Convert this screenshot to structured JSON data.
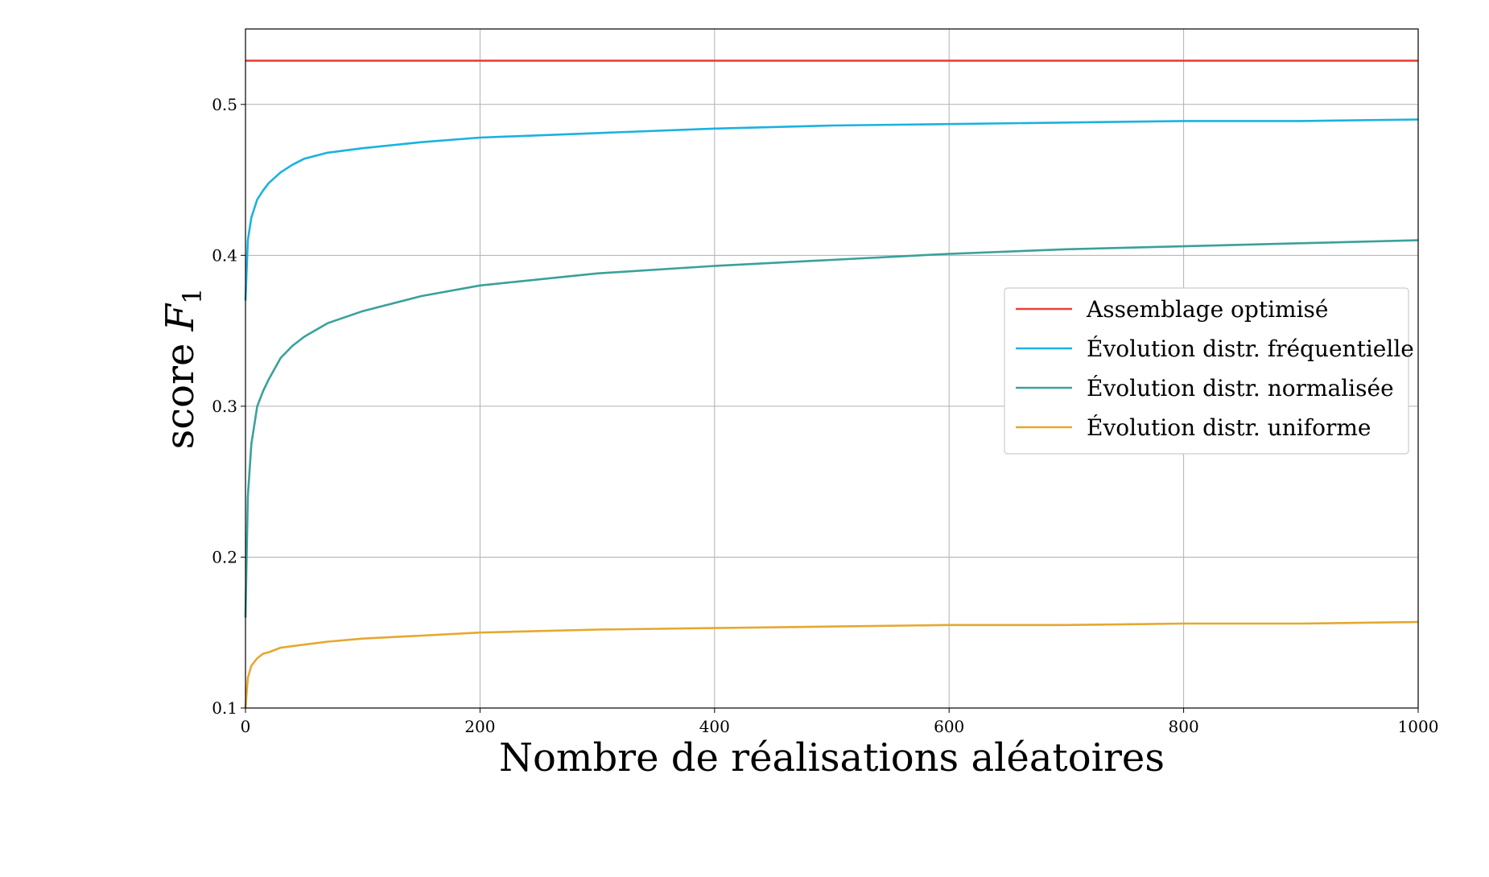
{
  "chart_data": {
    "type": "line",
    "xlabel": "Nombre de réalisations aléatoires",
    "ylabel_prefix": "score ",
    "ylabel_var": "F",
    "ylabel_sub": "1",
    "xlim": [
      0,
      1000
    ],
    "ylim": [
      0.1,
      0.55
    ],
    "xticks": [
      0,
      200,
      400,
      600,
      800,
      1000
    ],
    "xtick_labels": [
      "0",
      "200",
      "400",
      "600",
      "800",
      "1000"
    ],
    "yticks": [
      0.1,
      0.2,
      0.3,
      0.4,
      0.5
    ],
    "ytick_labels": [
      "0.1",
      "0.2",
      "0.3",
      "0.4",
      "0.5"
    ],
    "grid": true,
    "legend_position": "center-right",
    "series": [
      {
        "name": "Assemblage optimisé",
        "color": "#e8413b",
        "x": [
          0,
          1000
        ],
        "y": [
          0.529,
          0.529
        ]
      },
      {
        "name": "Évolution distr. fréquentielle",
        "color": "#1ab2e0",
        "x": [
          0,
          2,
          5,
          10,
          15,
          20,
          30,
          40,
          50,
          70,
          100,
          150,
          200,
          300,
          400,
          500,
          600,
          700,
          800,
          900,
          1000
        ],
        "y": [
          0.37,
          0.41,
          0.425,
          0.437,
          0.443,
          0.448,
          0.455,
          0.46,
          0.464,
          0.468,
          0.471,
          0.475,
          0.478,
          0.481,
          0.484,
          0.486,
          0.487,
          0.488,
          0.489,
          0.489,
          0.49
        ]
      },
      {
        "name": "Évolution distr. normalisée",
        "color": "#3aa19a",
        "x": [
          0,
          2,
          5,
          10,
          15,
          20,
          30,
          40,
          50,
          70,
          100,
          150,
          200,
          300,
          400,
          500,
          600,
          700,
          800,
          900,
          1000
        ],
        "y": [
          0.16,
          0.24,
          0.275,
          0.3,
          0.31,
          0.318,
          0.332,
          0.34,
          0.346,
          0.355,
          0.363,
          0.373,
          0.38,
          0.388,
          0.393,
          0.397,
          0.401,
          0.404,
          0.406,
          0.408,
          0.41
        ]
      },
      {
        "name": "Évolution distr. uniforme",
        "color": "#e5a82f",
        "x": [
          0,
          2,
          5,
          10,
          15,
          20,
          30,
          40,
          50,
          70,
          100,
          150,
          200,
          300,
          400,
          500,
          600,
          700,
          800,
          900,
          1000
        ],
        "y": [
          0.1,
          0.12,
          0.128,
          0.133,
          0.136,
          0.137,
          0.14,
          0.141,
          0.142,
          0.144,
          0.146,
          0.148,
          0.15,
          0.152,
          0.153,
          0.154,
          0.155,
          0.155,
          0.156,
          0.156,
          0.157
        ]
      }
    ]
  }
}
